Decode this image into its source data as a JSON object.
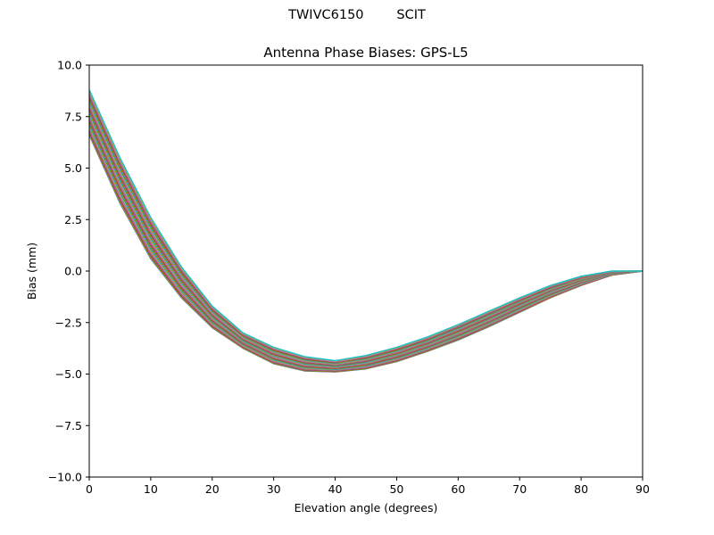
{
  "figure": {
    "suptitle": "TWIVC6150        SCIT"
  },
  "chart_data": {
    "type": "line",
    "title": "Antenna Phase Biases: GPS-L5",
    "xlabel": "Elevation angle (degrees)",
    "ylabel": "Bias (mm)",
    "xlim": [
      0,
      90
    ],
    "ylim": [
      -10,
      10
    ],
    "xticks": [
      "0",
      "10",
      "20",
      "30",
      "40",
      "50",
      "60",
      "70",
      "80",
      "90"
    ],
    "yticks": [
      "−10.0",
      "−7.5",
      "−5.0",
      "−2.5",
      "0.0",
      "2.5",
      "5.0",
      "7.5",
      "10.0"
    ],
    "xtick_values": [
      0,
      10,
      20,
      30,
      40,
      50,
      60,
      70,
      80,
      90
    ],
    "ytick_values": [
      -10,
      -7.5,
      -5,
      -2.5,
      0,
      2.5,
      5,
      7.5,
      10
    ],
    "grid": false,
    "legend": "none",
    "x": [
      0,
      5,
      10,
      15,
      20,
      25,
      30,
      35,
      40,
      45,
      50,
      55,
      60,
      65,
      70,
      75,
      80,
      85,
      90
    ],
    "series_envelope": {
      "upper": [
        8.8,
        5.5,
        2.6,
        0.2,
        -1.7,
        -3.0,
        -3.7,
        -4.15,
        -4.35,
        -4.1,
        -3.7,
        -3.2,
        -2.6,
        -1.95,
        -1.3,
        -0.7,
        -0.25,
        0.0,
        0.0
      ],
      "lower": [
        6.6,
        3.3,
        0.6,
        -1.3,
        -2.75,
        -3.75,
        -4.5,
        -4.85,
        -4.9,
        -4.75,
        -4.4,
        -3.9,
        -3.35,
        -2.7,
        -2.0,
        -1.3,
        -0.7,
        -0.2,
        0.0
      ]
    },
    "series_count": 40,
    "series_colors": [
      "#1f77b4",
      "#ff7f0e",
      "#2ca02c",
      "#d62728",
      "#9467bd",
      "#8c564b",
      "#e377c2",
      "#7f7f7f",
      "#bcbd22",
      "#17becf"
    ]
  }
}
